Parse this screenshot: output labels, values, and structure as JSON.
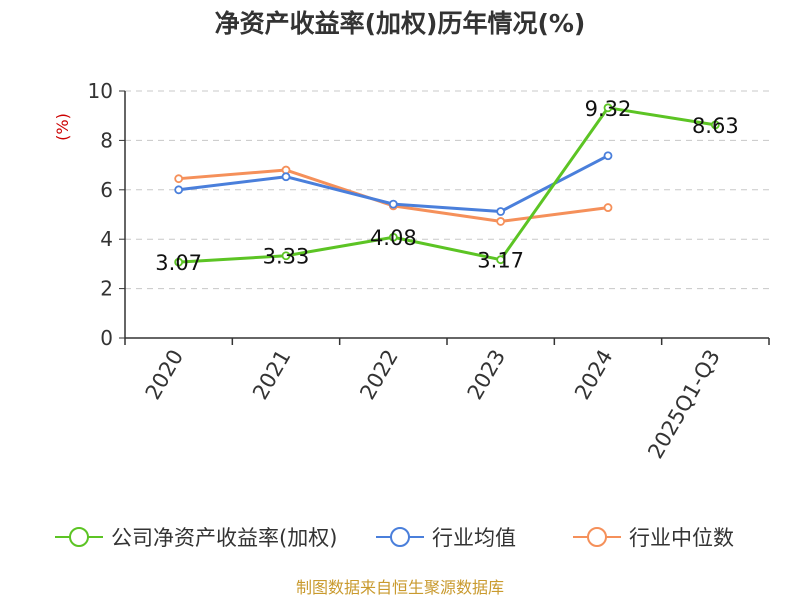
{
  "chart_data": {
    "type": "line",
    "title": "净资产收益率(加权)历年情况(%)",
    "ylabel": "(%)",
    "xlabel": "",
    "categories": [
      "2020",
      "2021",
      "2022",
      "2023",
      "2024",
      "2025Q1-Q3"
    ],
    "ylim": [
      0,
      10
    ],
    "yticks": [
      0,
      2,
      4,
      6,
      8,
      10
    ],
    "grid": true,
    "legend_position": "bottom",
    "series": [
      {
        "name": "公司净资产收益率(加权)",
        "color": "#5cc424",
        "values": [
          3.07,
          3.33,
          4.08,
          3.17,
          9.32,
          8.63
        ],
        "labels": [
          "3.07",
          "3.33",
          "4.08",
          "3.17",
          "9.32",
          "8.63"
        ]
      },
      {
        "name": "行业均值",
        "color": "#4a7fdb",
        "values": [
          6.0,
          6.53,
          5.42,
          5.12,
          7.38,
          null
        ]
      },
      {
        "name": "行业中位数",
        "color": "#f5905a",
        "values": [
          6.45,
          6.8,
          5.35,
          4.72,
          5.28,
          null
        ]
      }
    ]
  },
  "source": "制图数据来自恒生聚源数据库"
}
